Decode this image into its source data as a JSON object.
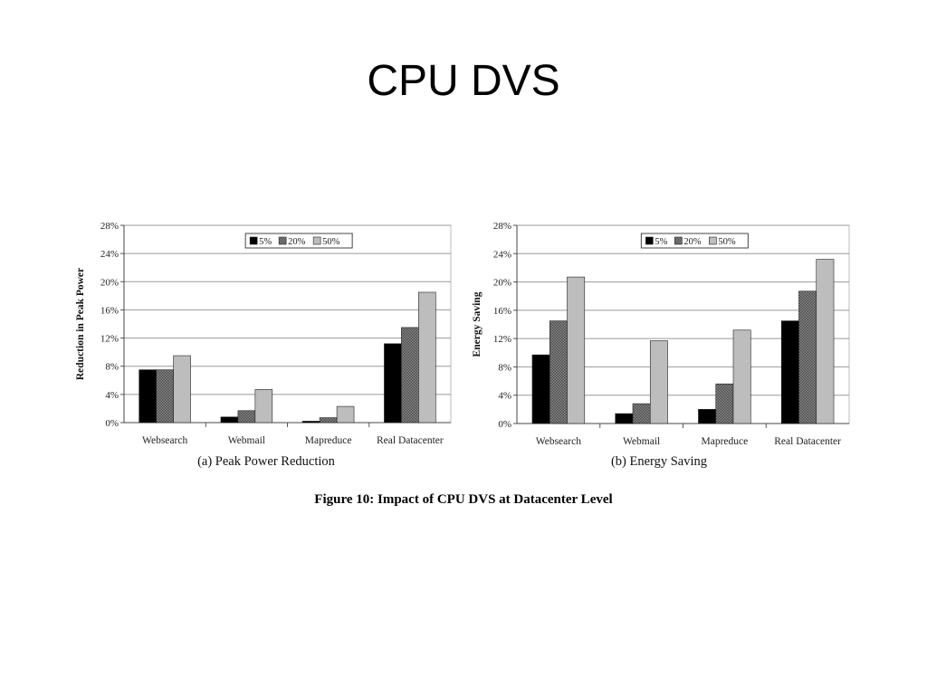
{
  "slide": {
    "title": "CPU DVS"
  },
  "figure_caption": "Figure 10: Impact of CPU DVS at Datacenter Level",
  "legend_swatch_colors": {
    "5%": "#000000",
    "20%": "#707070",
    "50%": "#bdbdbd"
  },
  "chart_data": [
    {
      "type": "bar",
      "caption": "(a) Peak Power Reduction",
      "ylabel": "Reduction in Peak Power",
      "xlabel": "",
      "categories": [
        "Websearch",
        "Webmail",
        "Mapreduce",
        "Real Datacenter"
      ],
      "series": [
        {
          "name": "5%",
          "values": [
            7.5,
            0.8,
            0.2,
            11.2
          ]
        },
        {
          "name": "20%",
          "values": [
            7.5,
            1.7,
            0.7,
            13.5
          ]
        },
        {
          "name": "50%",
          "values": [
            9.5,
            4.7,
            2.3,
            18.5
          ]
        }
      ],
      "ylim": [
        0,
        28
      ],
      "yticks": [
        "0%",
        "4%",
        "8%",
        "12%",
        "16%",
        "20%",
        "24%",
        "28%"
      ],
      "grid": true,
      "legend_position": "top-right"
    },
    {
      "type": "bar",
      "caption": "(b) Energy Saving",
      "ylabel": "Energy Saving",
      "xlabel": "",
      "categories": [
        "Websearch",
        "Webmail",
        "Mapreduce",
        "Real Datacenter"
      ],
      "series": [
        {
          "name": "5%",
          "values": [
            9.7,
            1.4,
            2.0,
            14.5
          ]
        },
        {
          "name": "20%",
          "values": [
            14.5,
            2.8,
            5.6,
            18.7
          ]
        },
        {
          "name": "50%",
          "values": [
            20.7,
            11.7,
            13.2,
            23.2
          ]
        }
      ],
      "ylim": [
        0,
        28
      ],
      "yticks": [
        "0%",
        "4%",
        "8%",
        "12%",
        "16%",
        "20%",
        "24%",
        "28%"
      ],
      "grid": true,
      "legend_position": "top-right"
    }
  ]
}
